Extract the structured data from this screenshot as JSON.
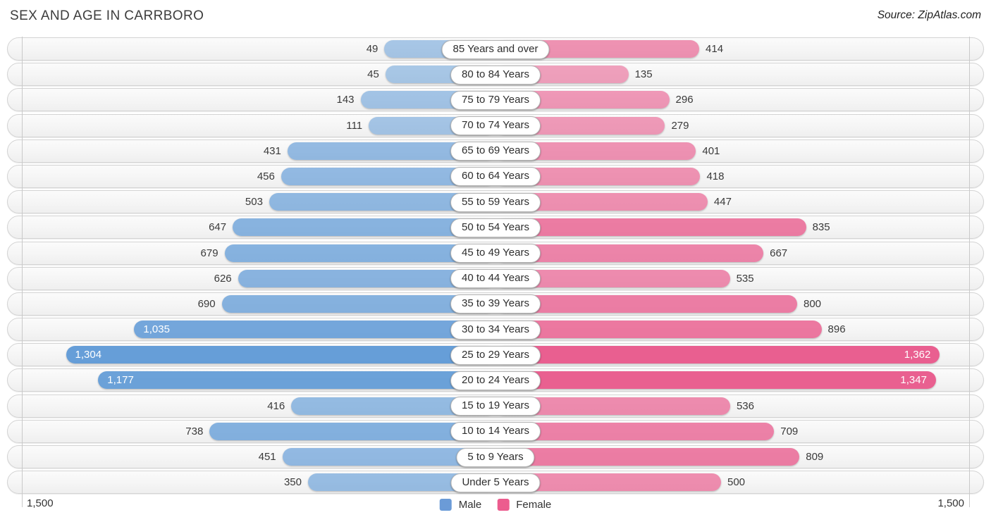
{
  "header": {
    "title": "SEX AND AGE IN CARRBORO",
    "source": "Source: ZipAtlas.com"
  },
  "chart_data": {
    "type": "bar",
    "subtype": "population-pyramid",
    "title": "SEX AND AGE IN CARRBORO",
    "categories": [
      "85 Years and over",
      "80 to 84 Years",
      "75 to 79 Years",
      "70 to 74 Years",
      "65 to 69 Years",
      "60 to 64 Years",
      "55 to 59 Years",
      "50 to 54 Years",
      "45 to 49 Years",
      "40 to 44 Years",
      "35 to 39 Years",
      "30 to 34 Years",
      "25 to 29 Years",
      "20 to 24 Years",
      "15 to 19 Years",
      "10 to 14 Years",
      "5 to 9 Years",
      "Under 5 Years"
    ],
    "series": [
      {
        "name": "Male",
        "base_color": "#5b97d5",
        "values": [
          49,
          45,
          143,
          111,
          431,
          456,
          503,
          647,
          679,
          626,
          690,
          1035,
          1304,
          1177,
          416,
          738,
          451,
          350
        ],
        "labels": [
          "49",
          "45",
          "143",
          "111",
          "431",
          "456",
          "503",
          "647",
          "679",
          "626",
          "690",
          "1,035",
          "1,304",
          "1,177",
          "416",
          "738",
          "451",
          "350"
        ]
      },
      {
        "name": "Female",
        "base_color": "#e8578a",
        "values": [
          414,
          135,
          296,
          279,
          401,
          418,
          447,
          835,
          667,
          535,
          800,
          896,
          1362,
          1347,
          536,
          709,
          809,
          500
        ],
        "labels": [
          "414",
          "135",
          "296",
          "279",
          "401",
          "418",
          "447",
          "835",
          "667",
          "535",
          "800",
          "896",
          "1,362",
          "1,347",
          "536",
          "709",
          "809",
          "500"
        ]
      }
    ],
    "axis_max": 1500,
    "axis_tick_labels": {
      "left": "1,500",
      "right": "1,500"
    },
    "legend": {
      "male_label": "Male",
      "male_swatch_color": "#6b9bd7",
      "female_label": "Female",
      "female_swatch_color": "#ec5c8e",
      "position": "bottom-center"
    },
    "grid": "vertical-edge-gridlines",
    "inside_label_threshold": 1000
  }
}
